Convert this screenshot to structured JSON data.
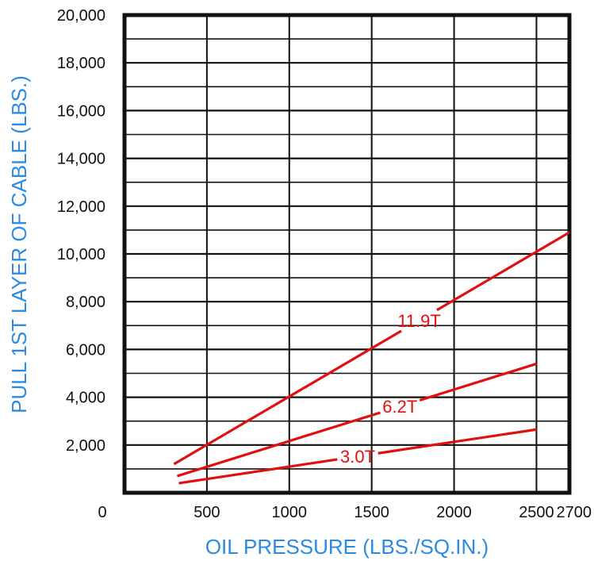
{
  "chart_data": {
    "type": "line",
    "title": "",
    "xlabel": "OIL PRESSURE (LBS./SQ.IN.)",
    "ylabel": "PULL 1ST LAYER OF CABLE (LBS.)",
    "xlim": [
      0,
      2700
    ],
    "ylim": [
      0,
      20000
    ],
    "x_ticks": [
      0,
      500,
      1000,
      1500,
      2000,
      2500,
      2700
    ],
    "x_tick_labels": [
      "0",
      "500",
      "1000",
      "1500",
      "2000",
      "2500",
      "2700"
    ],
    "y_ticks": [
      2000,
      4000,
      6000,
      8000,
      10000,
      12000,
      14000,
      16000,
      18000,
      20000
    ],
    "y_tick_labels": [
      "2,000",
      "4,000",
      "6,000",
      "8,000",
      "10,000",
      "12,000",
      "14,000",
      "16,000",
      "18,000",
      "20,000"
    ],
    "grid": true,
    "series": [
      {
        "name": "11.9T",
        "x": [
          300,
          2700
        ],
        "y": [
          1200,
          10900
        ],
        "color": "#e01010"
      },
      {
        "name": "6.2T",
        "x": [
          320,
          2500
        ],
        "y": [
          700,
          5400
        ],
        "color": "#e01010"
      },
      {
        "name": "3.0T",
        "x": [
          330,
          2500
        ],
        "y": [
          400,
          2650
        ],
        "color": "#e01010"
      }
    ]
  }
}
